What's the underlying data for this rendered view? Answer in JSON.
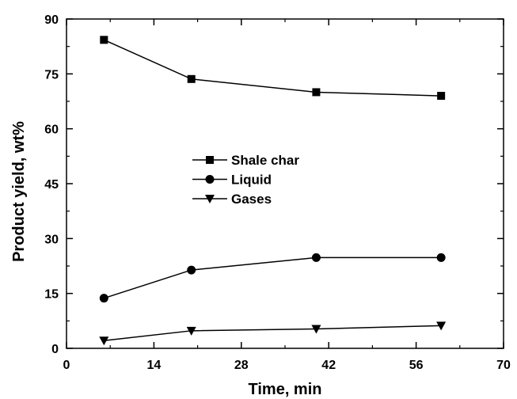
{
  "chart_data": {
    "type": "line",
    "xlabel": "Time, min",
    "ylabel": "Product yield, wt%",
    "xlim": [
      0,
      70
    ],
    "ylim": [
      0,
      90
    ],
    "x_major_ticks": [
      0,
      14,
      28,
      42,
      56,
      70
    ],
    "y_major_ticks": [
      0,
      15,
      30,
      45,
      60,
      75,
      90
    ],
    "x_minor_ticks": [
      7,
      21,
      35,
      49,
      63
    ],
    "y_minor_ticks": [
      7.5,
      22.5,
      37.5,
      52.5,
      67.5,
      82.5
    ],
    "x_tick_labels": [
      "0",
      "14",
      "28",
      "42",
      "56",
      "70"
    ],
    "y_tick_labels": [
      "0",
      "15",
      "30",
      "45",
      "60",
      "75",
      "90"
    ],
    "grid": false,
    "legend_position": "center-left",
    "series": [
      {
        "name": "Shale char",
        "marker": "square",
        "color": "#000000",
        "x": [
          6,
          20,
          40,
          60
        ],
        "y": [
          84.3,
          73.6,
          70.0,
          69.0
        ]
      },
      {
        "name": "Liquid",
        "marker": "circle",
        "color": "#000000",
        "x": [
          6,
          20,
          40,
          60
        ],
        "y": [
          13.7,
          21.4,
          24.8,
          24.8
        ]
      },
      {
        "name": "Gases",
        "marker": "triangle-down",
        "color": "#000000",
        "x": [
          6,
          20,
          40,
          60
        ],
        "y": [
          2.1,
          4.8,
          5.3,
          6.2
        ]
      }
    ]
  }
}
